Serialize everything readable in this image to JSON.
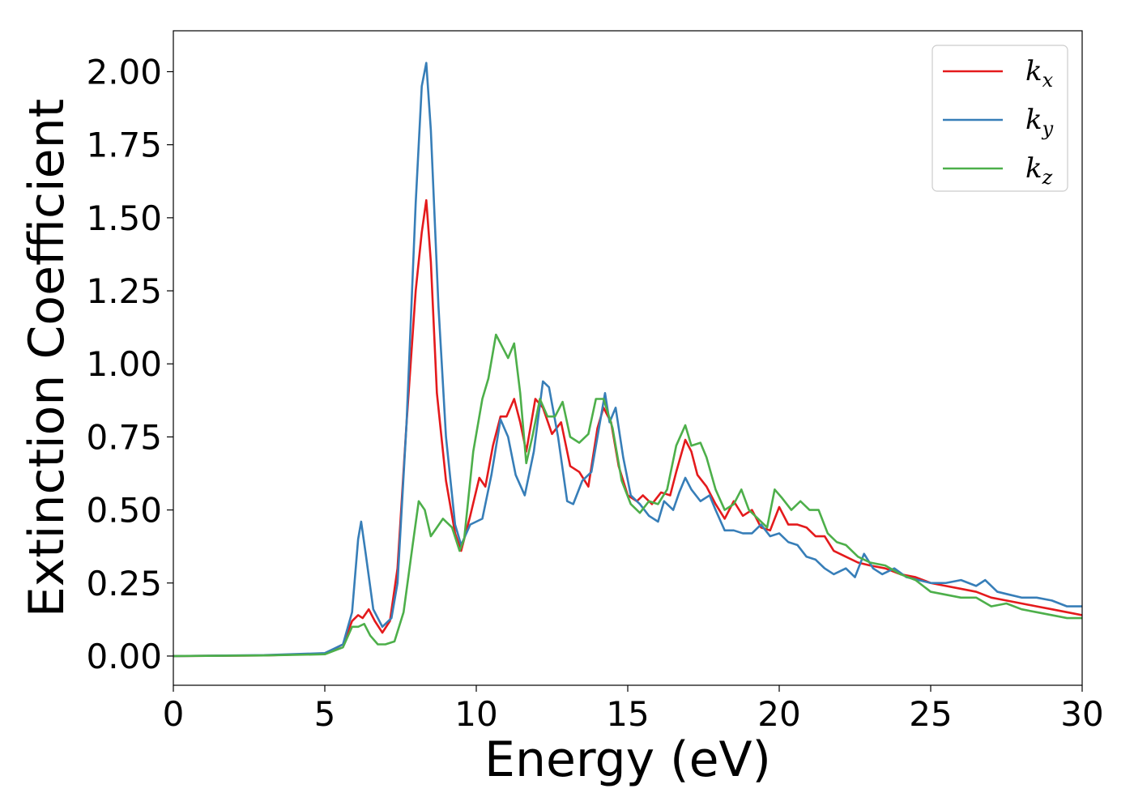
{
  "chart_data": {
    "type": "line",
    "title": "",
    "xlabel": "Energy (eV)",
    "ylabel": "Extinction Coefficient",
    "xlim": [
      0,
      30
    ],
    "ylim": [
      -0.1,
      2.14
    ],
    "xticks": [
      0,
      5,
      10,
      15,
      20,
      25,
      30
    ],
    "xtick_labels": [
      "0",
      "5",
      "10",
      "15",
      "20",
      "25",
      "30"
    ],
    "yticks": [
      0.0,
      0.25,
      0.5,
      0.75,
      1.0,
      1.25,
      1.5,
      1.75,
      2.0
    ],
    "ytick_labels": [
      "0.00",
      "0.25",
      "0.50",
      "0.75",
      "1.00",
      "1.25",
      "1.50",
      "1.75",
      "2.00"
    ],
    "grid": false,
    "legend_position": "top-right",
    "series": [
      {
        "name": "k",
        "subscript": "x",
        "color": "#e41a1c",
        "points": [
          [
            0,
            0
          ],
          [
            3,
            0.002
          ],
          [
            5,
            0.008
          ],
          [
            5.6,
            0.04
          ],
          [
            5.9,
            0.12
          ],
          [
            6.1,
            0.14
          ],
          [
            6.25,
            0.13
          ],
          [
            6.45,
            0.16
          ],
          [
            6.65,
            0.12
          ],
          [
            6.9,
            0.08
          ],
          [
            7.15,
            0.12
          ],
          [
            7.4,
            0.3
          ],
          [
            7.7,
            0.8
          ],
          [
            8.0,
            1.25
          ],
          [
            8.2,
            1.45
          ],
          [
            8.35,
            1.56
          ],
          [
            8.5,
            1.35
          ],
          [
            8.7,
            0.9
          ],
          [
            9.0,
            0.6
          ],
          [
            9.3,
            0.42
          ],
          [
            9.5,
            0.36
          ],
          [
            9.8,
            0.48
          ],
          [
            10.1,
            0.61
          ],
          [
            10.3,
            0.58
          ],
          [
            10.55,
            0.72
          ],
          [
            10.8,
            0.82
          ],
          [
            11.0,
            0.82
          ],
          [
            11.25,
            0.88
          ],
          [
            11.45,
            0.8
          ],
          [
            11.65,
            0.7
          ],
          [
            11.95,
            0.88
          ],
          [
            12.2,
            0.85
          ],
          [
            12.5,
            0.76
          ],
          [
            12.8,
            0.8
          ],
          [
            13.1,
            0.65
          ],
          [
            13.4,
            0.63
          ],
          [
            13.7,
            0.58
          ],
          [
            14.0,
            0.78
          ],
          [
            14.2,
            0.85
          ],
          [
            14.45,
            0.8
          ],
          [
            14.7,
            0.65
          ],
          [
            15.0,
            0.55
          ],
          [
            15.3,
            0.53
          ],
          [
            15.5,
            0.55
          ],
          [
            15.8,
            0.52
          ],
          [
            16.1,
            0.56
          ],
          [
            16.4,
            0.55
          ],
          [
            16.6,
            0.63
          ],
          [
            16.9,
            0.74
          ],
          [
            17.1,
            0.7
          ],
          [
            17.3,
            0.62
          ],
          [
            17.6,
            0.58
          ],
          [
            17.9,
            0.52
          ],
          [
            18.2,
            0.47
          ],
          [
            18.5,
            0.53
          ],
          [
            18.8,
            0.48
          ],
          [
            19.1,
            0.5
          ],
          [
            19.4,
            0.44
          ],
          [
            19.7,
            0.43
          ],
          [
            20.0,
            0.51
          ],
          [
            20.3,
            0.45
          ],
          [
            20.6,
            0.45
          ],
          [
            20.9,
            0.44
          ],
          [
            21.2,
            0.41
          ],
          [
            21.5,
            0.41
          ],
          [
            21.8,
            0.36
          ],
          [
            22.2,
            0.34
          ],
          [
            22.6,
            0.32
          ],
          [
            23.0,
            0.31
          ],
          [
            23.5,
            0.3
          ],
          [
            24.0,
            0.28
          ],
          [
            24.5,
            0.27
          ],
          [
            25.0,
            0.25
          ],
          [
            25.5,
            0.24
          ],
          [
            26.0,
            0.23
          ],
          [
            26.5,
            0.22
          ],
          [
            27.0,
            0.2
          ],
          [
            27.5,
            0.19
          ],
          [
            28.0,
            0.18
          ],
          [
            28.5,
            0.17
          ],
          [
            29.0,
            0.16
          ],
          [
            29.5,
            0.15
          ],
          [
            30,
            0.14
          ]
        ]
      },
      {
        "name": "k",
        "subscript": "y",
        "color": "#377eb8",
        "points": [
          [
            0,
            0
          ],
          [
            3,
            0.003
          ],
          [
            5,
            0.01
          ],
          [
            5.6,
            0.04
          ],
          [
            5.9,
            0.15
          ],
          [
            6.1,
            0.4
          ],
          [
            6.2,
            0.46
          ],
          [
            6.35,
            0.35
          ],
          [
            6.6,
            0.16
          ],
          [
            6.9,
            0.1
          ],
          [
            7.2,
            0.13
          ],
          [
            7.4,
            0.25
          ],
          [
            7.7,
            0.8
          ],
          [
            8.0,
            1.55
          ],
          [
            8.2,
            1.95
          ],
          [
            8.35,
            2.03
          ],
          [
            8.5,
            1.8
          ],
          [
            8.75,
            1.2
          ],
          [
            9.0,
            0.75
          ],
          [
            9.3,
            0.45
          ],
          [
            9.5,
            0.38
          ],
          [
            9.8,
            0.45
          ],
          [
            10.2,
            0.47
          ],
          [
            10.5,
            0.62
          ],
          [
            10.8,
            0.81
          ],
          [
            11.05,
            0.75
          ],
          [
            11.3,
            0.62
          ],
          [
            11.6,
            0.55
          ],
          [
            11.9,
            0.7
          ],
          [
            12.2,
            0.94
          ],
          [
            12.4,
            0.92
          ],
          [
            12.7,
            0.75
          ],
          [
            13.0,
            0.53
          ],
          [
            13.2,
            0.52
          ],
          [
            13.5,
            0.6
          ],
          [
            13.8,
            0.63
          ],
          [
            14.0,
            0.75
          ],
          [
            14.25,
            0.9
          ],
          [
            14.4,
            0.8
          ],
          [
            14.6,
            0.85
          ],
          [
            14.85,
            0.68
          ],
          [
            15.1,
            0.55
          ],
          [
            15.4,
            0.52
          ],
          [
            15.7,
            0.48
          ],
          [
            16.0,
            0.46
          ],
          [
            16.2,
            0.53
          ],
          [
            16.5,
            0.5
          ],
          [
            16.7,
            0.56
          ],
          [
            16.9,
            0.61
          ],
          [
            17.1,
            0.57
          ],
          [
            17.4,
            0.53
          ],
          [
            17.7,
            0.55
          ],
          [
            17.9,
            0.5
          ],
          [
            18.2,
            0.43
          ],
          [
            18.5,
            0.43
          ],
          [
            18.8,
            0.42
          ],
          [
            19.1,
            0.42
          ],
          [
            19.4,
            0.45
          ],
          [
            19.7,
            0.41
          ],
          [
            20.0,
            0.42
          ],
          [
            20.3,
            0.39
          ],
          [
            20.6,
            0.38
          ],
          [
            20.9,
            0.34
          ],
          [
            21.2,
            0.33
          ],
          [
            21.5,
            0.3
          ],
          [
            21.8,
            0.28
          ],
          [
            22.2,
            0.3
          ],
          [
            22.5,
            0.27
          ],
          [
            22.8,
            0.35
          ],
          [
            23.1,
            0.3
          ],
          [
            23.4,
            0.28
          ],
          [
            23.8,
            0.3
          ],
          [
            24.2,
            0.27
          ],
          [
            24.6,
            0.26
          ],
          [
            25.0,
            0.25
          ],
          [
            25.5,
            0.25
          ],
          [
            26.0,
            0.26
          ],
          [
            26.5,
            0.24
          ],
          [
            26.8,
            0.26
          ],
          [
            27.2,
            0.22
          ],
          [
            27.6,
            0.21
          ],
          [
            28.0,
            0.2
          ],
          [
            28.5,
            0.2
          ],
          [
            29.0,
            0.19
          ],
          [
            29.5,
            0.17
          ],
          [
            30,
            0.17
          ]
        ]
      },
      {
        "name": "k",
        "subscript": "z",
        "color": "#4daf4a",
        "points": [
          [
            0,
            0
          ],
          [
            3,
            0.002
          ],
          [
            5,
            0.006
          ],
          [
            5.6,
            0.03
          ],
          [
            5.9,
            0.1
          ],
          [
            6.1,
            0.1
          ],
          [
            6.3,
            0.11
          ],
          [
            6.5,
            0.07
          ],
          [
            6.75,
            0.04
          ],
          [
            7.0,
            0.04
          ],
          [
            7.3,
            0.05
          ],
          [
            7.6,
            0.15
          ],
          [
            7.9,
            0.38
          ],
          [
            8.1,
            0.53
          ],
          [
            8.3,
            0.5
          ],
          [
            8.5,
            0.41
          ],
          [
            8.7,
            0.44
          ],
          [
            8.9,
            0.47
          ],
          [
            9.2,
            0.44
          ],
          [
            9.45,
            0.36
          ],
          [
            9.6,
            0.4
          ],
          [
            9.9,
            0.7
          ],
          [
            10.2,
            0.88
          ],
          [
            10.4,
            0.95
          ],
          [
            10.65,
            1.1
          ],
          [
            10.9,
            1.05
          ],
          [
            11.05,
            1.02
          ],
          [
            11.25,
            1.07
          ],
          [
            11.45,
            0.9
          ],
          [
            11.65,
            0.66
          ],
          [
            11.85,
            0.75
          ],
          [
            12.1,
            0.88
          ],
          [
            12.35,
            0.82
          ],
          [
            12.6,
            0.82
          ],
          [
            12.85,
            0.87
          ],
          [
            13.1,
            0.75
          ],
          [
            13.4,
            0.73
          ],
          [
            13.7,
            0.76
          ],
          [
            13.95,
            0.88
          ],
          [
            14.2,
            0.88
          ],
          [
            14.5,
            0.78
          ],
          [
            14.8,
            0.6
          ],
          [
            15.1,
            0.52
          ],
          [
            15.4,
            0.49
          ],
          [
            15.7,
            0.53
          ],
          [
            16.0,
            0.52
          ],
          [
            16.3,
            0.57
          ],
          [
            16.6,
            0.72
          ],
          [
            16.9,
            0.79
          ],
          [
            17.1,
            0.72
          ],
          [
            17.4,
            0.73
          ],
          [
            17.6,
            0.68
          ],
          [
            17.9,
            0.57
          ],
          [
            18.2,
            0.5
          ],
          [
            18.5,
            0.52
          ],
          [
            18.75,
            0.57
          ],
          [
            19.0,
            0.5
          ],
          [
            19.3,
            0.47
          ],
          [
            19.6,
            0.44
          ],
          [
            19.85,
            0.57
          ],
          [
            20.1,
            0.54
          ],
          [
            20.4,
            0.5
          ],
          [
            20.7,
            0.53
          ],
          [
            21.0,
            0.5
          ],
          [
            21.3,
            0.5
          ],
          [
            21.6,
            0.42
          ],
          [
            21.9,
            0.39
          ],
          [
            22.2,
            0.38
          ],
          [
            22.6,
            0.34
          ],
          [
            23.0,
            0.32
          ],
          [
            23.5,
            0.31
          ],
          [
            24.0,
            0.28
          ],
          [
            24.5,
            0.26
          ],
          [
            25.0,
            0.22
          ],
          [
            25.5,
            0.21
          ],
          [
            26.0,
            0.2
          ],
          [
            26.5,
            0.2
          ],
          [
            27.0,
            0.17
          ],
          [
            27.5,
            0.18
          ],
          [
            28.0,
            0.16
          ],
          [
            28.5,
            0.15
          ],
          [
            29.0,
            0.14
          ],
          [
            29.5,
            0.13
          ],
          [
            30,
            0.13
          ]
        ]
      }
    ]
  }
}
